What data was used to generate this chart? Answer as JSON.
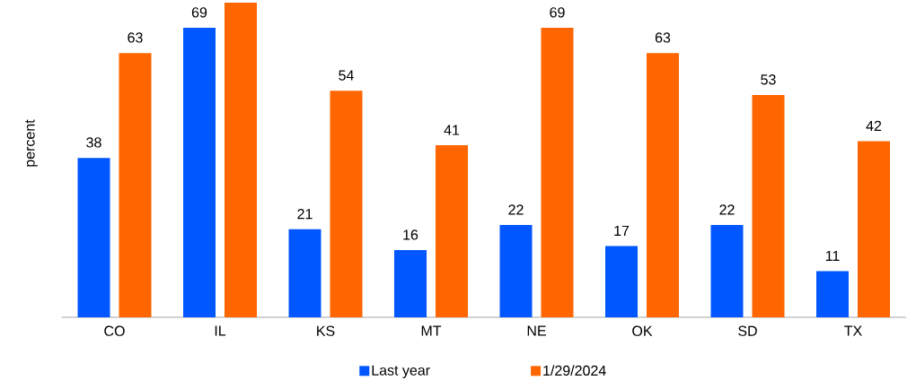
{
  "chart_data": {
    "type": "bar",
    "ylabel": "percent",
    "categories": [
      "CO",
      "IL",
      "KS",
      "MT",
      "NE",
      "OK",
      "SD",
      "TX"
    ],
    "series": [
      {
        "name": "Last year",
        "color": "#0057ff",
        "values": [
          38,
          69,
          21,
          16,
          22,
          17,
          22,
          11
        ],
        "value_labels": [
          "38",
          "69",
          "21",
          "16",
          "22",
          "17",
          "22",
          "11"
        ]
      },
      {
        "name": "1/29/2024",
        "color": "#ff6600",
        "values": [
          63,
          75,
          54,
          41,
          69,
          63,
          53,
          42
        ],
        "value_labels": [
          "63",
          null,
          "54",
          "41",
          "69",
          "63",
          "53",
          "42"
        ]
      }
    ],
    "legend": "bottom",
    "grid": false
  }
}
